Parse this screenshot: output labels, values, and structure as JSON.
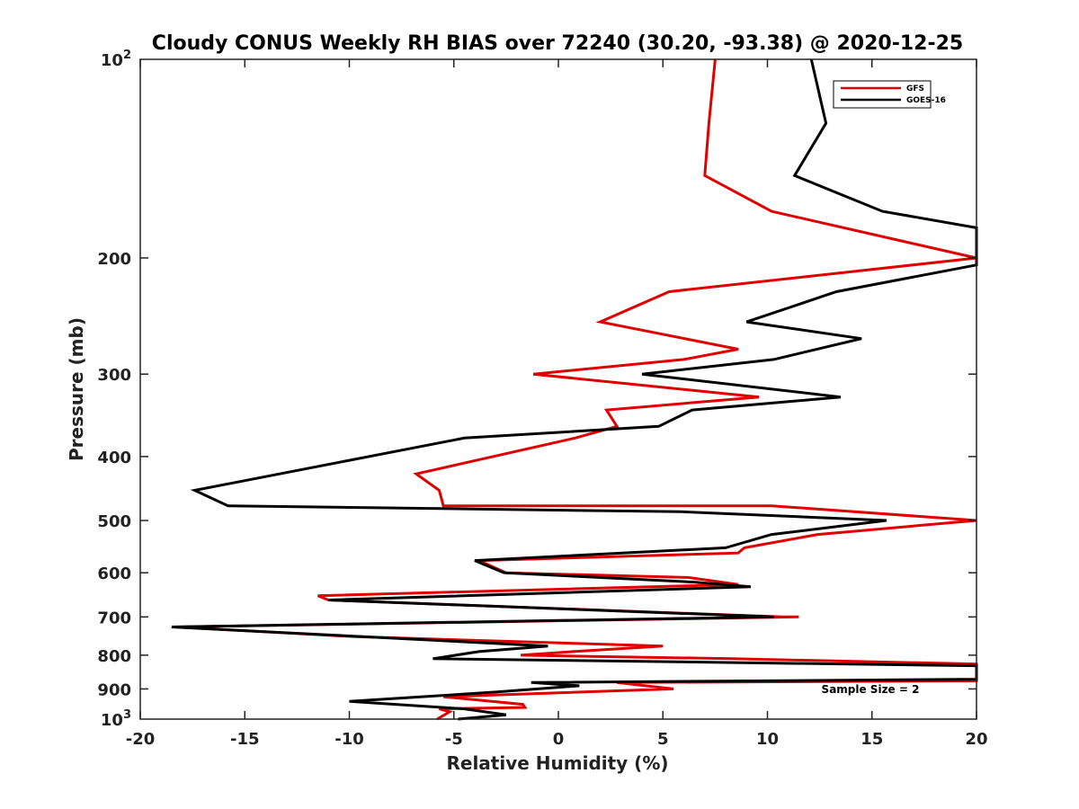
{
  "chart_data": {
    "type": "line",
    "title": "Cloudy CONUS Weekly RH BIAS over 72240 (30.20, -93.38) @ 2020-12-25",
    "xlabel": "Relative Humidity (%)",
    "ylabel": "Pressure (mb)",
    "xlim": [
      -20,
      20
    ],
    "ylim": [
      100,
      1000
    ],
    "y_scale": "log",
    "y_reversed": true,
    "grid": false,
    "x_ticks": [
      -20,
      -15,
      -10,
      -5,
      0,
      5,
      10,
      15,
      20
    ],
    "x_tick_labels": [
      "-20",
      "-15",
      "-10",
      "-5",
      "0",
      "5",
      "10",
      "15",
      "20"
    ],
    "y_ticks": [
      200,
      300,
      400,
      500,
      600,
      700,
      800,
      900
    ],
    "y_tick_labels": [
      "200",
      "300",
      "400",
      "500",
      "600",
      "700",
      "800",
      "900"
    ],
    "y_end_labels": [
      {
        "value": 100,
        "base": "10",
        "exp": "2"
      },
      {
        "value": 1000,
        "base": "10",
        "exp": "3"
      }
    ],
    "legend_position": "top-right",
    "annotation": "Sample Size = 2",
    "series": [
      {
        "name": "GFS",
        "color": "#e00000",
        "points": [
          {
            "x": 7.5,
            "p": 100
          },
          {
            "x": 7.2,
            "p": 125
          },
          {
            "x": 7.0,
            "p": 150
          },
          {
            "x": 10.2,
            "p": 170
          },
          {
            "x": 20.0,
            "p": 200
          },
          {
            "x": 20.0,
            "p": 200
          },
          {
            "x": 5.3,
            "p": 225
          },
          {
            "x": 2.0,
            "p": 250
          },
          {
            "x": 8.6,
            "p": 275
          },
          {
            "x": 6.0,
            "p": 285
          },
          {
            "x": -1.2,
            "p": 300
          },
          {
            "x": 9.6,
            "p": 325
          },
          {
            "x": 2.3,
            "p": 340
          },
          {
            "x": 2.8,
            "p": 360
          },
          {
            "x": 0.8,
            "p": 375
          },
          {
            "x": -6.8,
            "p": 425
          },
          {
            "x": -5.7,
            "p": 450
          },
          {
            "x": -5.5,
            "p": 475
          },
          {
            "x": 10.2,
            "p": 475
          },
          {
            "x": 20.0,
            "p": 500
          },
          {
            "x": 12.4,
            "p": 525
          },
          {
            "x": 8.9,
            "p": 550
          },
          {
            "x": 8.6,
            "p": 560
          },
          {
            "x": -3.8,
            "p": 575
          },
          {
            "x": -2.5,
            "p": 600
          },
          {
            "x": 6.2,
            "p": 610
          },
          {
            "x": 8.6,
            "p": 625
          },
          {
            "x": -11.5,
            "p": 650
          },
          {
            "x": -11.0,
            "p": 660
          },
          {
            "x": 10.7,
            "p": 700
          },
          {
            "x": 11.5,
            "p": 700
          },
          {
            "x": -18.3,
            "p": 725
          },
          {
            "x": -9.7,
            "p": 750
          },
          {
            "x": 5.0,
            "p": 775
          },
          {
            "x": 0.7,
            "p": 790
          },
          {
            "x": -1.8,
            "p": 800
          },
          {
            "x": 8.3,
            "p": 810
          },
          {
            "x": 20.0,
            "p": 825
          },
          {
            "x": 20.0,
            "p": 875
          },
          {
            "x": 2.8,
            "p": 880
          },
          {
            "x": 5.5,
            "p": 900
          },
          {
            "x": -5.5,
            "p": 925
          },
          {
            "x": -1.7,
            "p": 950
          },
          {
            "x": -1.6,
            "p": 960
          },
          {
            "x": -5.7,
            "p": 965
          },
          {
            "x": -5.2,
            "p": 975
          },
          {
            "x": -5.8,
            "p": 1000
          }
        ]
      },
      {
        "name": "GOES-16",
        "color": "#000000",
        "points": [
          {
            "x": 12.1,
            "p": 100
          },
          {
            "x": 12.8,
            "p": 125
          },
          {
            "x": 11.3,
            "p": 150
          },
          {
            "x": 15.5,
            "p": 170
          },
          {
            "x": 20.0,
            "p": 180
          },
          {
            "x": 20.0,
            "p": 205
          },
          {
            "x": 13.3,
            "p": 225
          },
          {
            "x": 9.0,
            "p": 250
          },
          {
            "x": 14.5,
            "p": 265
          },
          {
            "x": 10.3,
            "p": 285
          },
          {
            "x": 4.0,
            "p": 300
          },
          {
            "x": 13.5,
            "p": 325
          },
          {
            "x": 6.4,
            "p": 340
          },
          {
            "x": 4.8,
            "p": 360
          },
          {
            "x": -4.5,
            "p": 375
          },
          {
            "x": -17.4,
            "p": 450
          },
          {
            "x": -15.8,
            "p": 475
          },
          {
            "x": 5.9,
            "p": 485
          },
          {
            "x": 15.7,
            "p": 500
          },
          {
            "x": 10.2,
            "p": 525
          },
          {
            "x": 8.0,
            "p": 550
          },
          {
            "x": -4.0,
            "p": 575
          },
          {
            "x": -2.6,
            "p": 600
          },
          {
            "x": 6.5,
            "p": 620
          },
          {
            "x": 9.2,
            "p": 630
          },
          {
            "x": -11.0,
            "p": 660
          },
          {
            "x": 10.3,
            "p": 700
          },
          {
            "x": -18.5,
            "p": 725
          },
          {
            "x": -0.5,
            "p": 775
          },
          {
            "x": -3.8,
            "p": 790
          },
          {
            "x": -6.0,
            "p": 810
          },
          {
            "x": 20.0,
            "p": 830
          },
          {
            "x": 20.0,
            "p": 870
          },
          {
            "x": -1.3,
            "p": 880
          },
          {
            "x": 1.0,
            "p": 890
          },
          {
            "x": -3.0,
            "p": 910
          },
          {
            "x": -10.0,
            "p": 940
          },
          {
            "x": -4.5,
            "p": 965
          },
          {
            "x": -2.5,
            "p": 985
          },
          {
            "x": -4.8,
            "p": 1000
          }
        ]
      }
    ]
  }
}
